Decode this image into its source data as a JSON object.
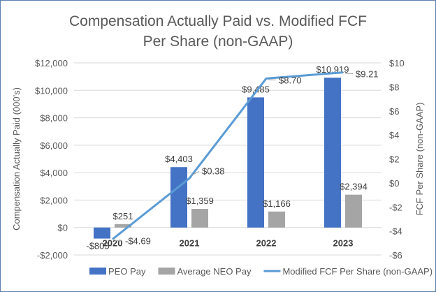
{
  "chart_data": {
    "type": "bar+line",
    "title_lines": [
      "Compensation Actually Paid vs. Modified FCF",
      "Per Share (non-GAAP)"
    ],
    "categories": [
      "2020",
      "2021",
      "2022",
      "2023"
    ],
    "ylabel": "Compensation Actually Paid (000's)",
    "y2label": "FCF Per Share (non-GAAP)",
    "ylim": [
      -2000,
      12000
    ],
    "y2lim": [
      -6,
      10
    ],
    "yticks": [
      -2000,
      0,
      2000,
      4000,
      6000,
      8000,
      10000,
      12000
    ],
    "ytick_labels": [
      "-$2,000",
      "$0",
      "$2,000",
      "$4,000",
      "$6,000",
      "$8,000",
      "$10,000",
      "$12,000"
    ],
    "y2ticks": [
      -6,
      -4,
      -2,
      0,
      2,
      4,
      6,
      8,
      10
    ],
    "y2tick_labels": [
      "-$6",
      "-$4",
      "-$2",
      "$0",
      "$2",
      "$4",
      "$6",
      "$8",
      "$10"
    ],
    "grid": true,
    "legend_position": "bottom",
    "series": [
      {
        "name": "PEO Pay",
        "type": "bar",
        "axis": "left",
        "color": "#4472c4",
        "values": [
          -805,
          4403,
          9485,
          10919
        ],
        "labels": [
          "-$805",
          "$4,403",
          "$9,485",
          "$10,919"
        ]
      },
      {
        "name": "Average NEO Pay",
        "type": "bar",
        "axis": "left",
        "color": "#a5a5a5",
        "values": [
          251,
          1359,
          1166,
          2394
        ],
        "labels": [
          "$251",
          "$1,359",
          "$1,166",
          "$2,394"
        ]
      },
      {
        "name": "Modified FCF Per Share (non-GAAP)",
        "type": "line",
        "axis": "right",
        "color": "#5b9bd5",
        "values": [
          -4.69,
          0.38,
          8.7,
          9.21
        ],
        "labels": [
          "-$4.69",
          "$0.38",
          "$8.70",
          "$9.21"
        ]
      }
    ]
  }
}
